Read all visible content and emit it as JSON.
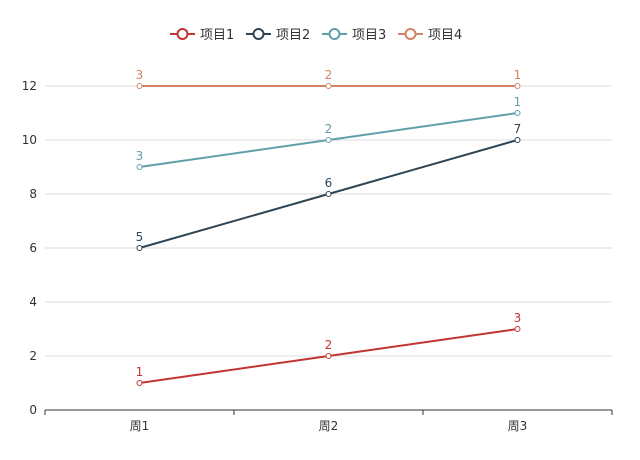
{
  "chart_data": {
    "type": "line",
    "categories": [
      "周1",
      "周2",
      "周3"
    ],
    "ylim": [
      0,
      12
    ],
    "y_ticks": [
      0,
      2,
      4,
      6,
      8,
      10,
      12
    ],
    "grid": true,
    "legend_position": "top-center",
    "series": [
      {
        "name": "项目1",
        "values": [
          1,
          2,
          3
        ],
        "labels": [
          "1",
          "2",
          "3"
        ],
        "color": "#c23531"
      },
      {
        "name": "项目2",
        "values": [
          6,
          8,
          10
        ],
        "labels": [
          "5",
          "6",
          "7"
        ],
        "color": "#2f4554"
      },
      {
        "name": "项目3",
        "values": [
          9,
          10,
          11
        ],
        "labels": [
          "3",
          "2",
          "1"
        ],
        "color": "#61a0a8"
      },
      {
        "name": "项目4",
        "values": [
          12,
          12,
          12
        ],
        "labels": [
          "3",
          "2",
          "1"
        ],
        "color": "#d48265"
      }
    ]
  }
}
